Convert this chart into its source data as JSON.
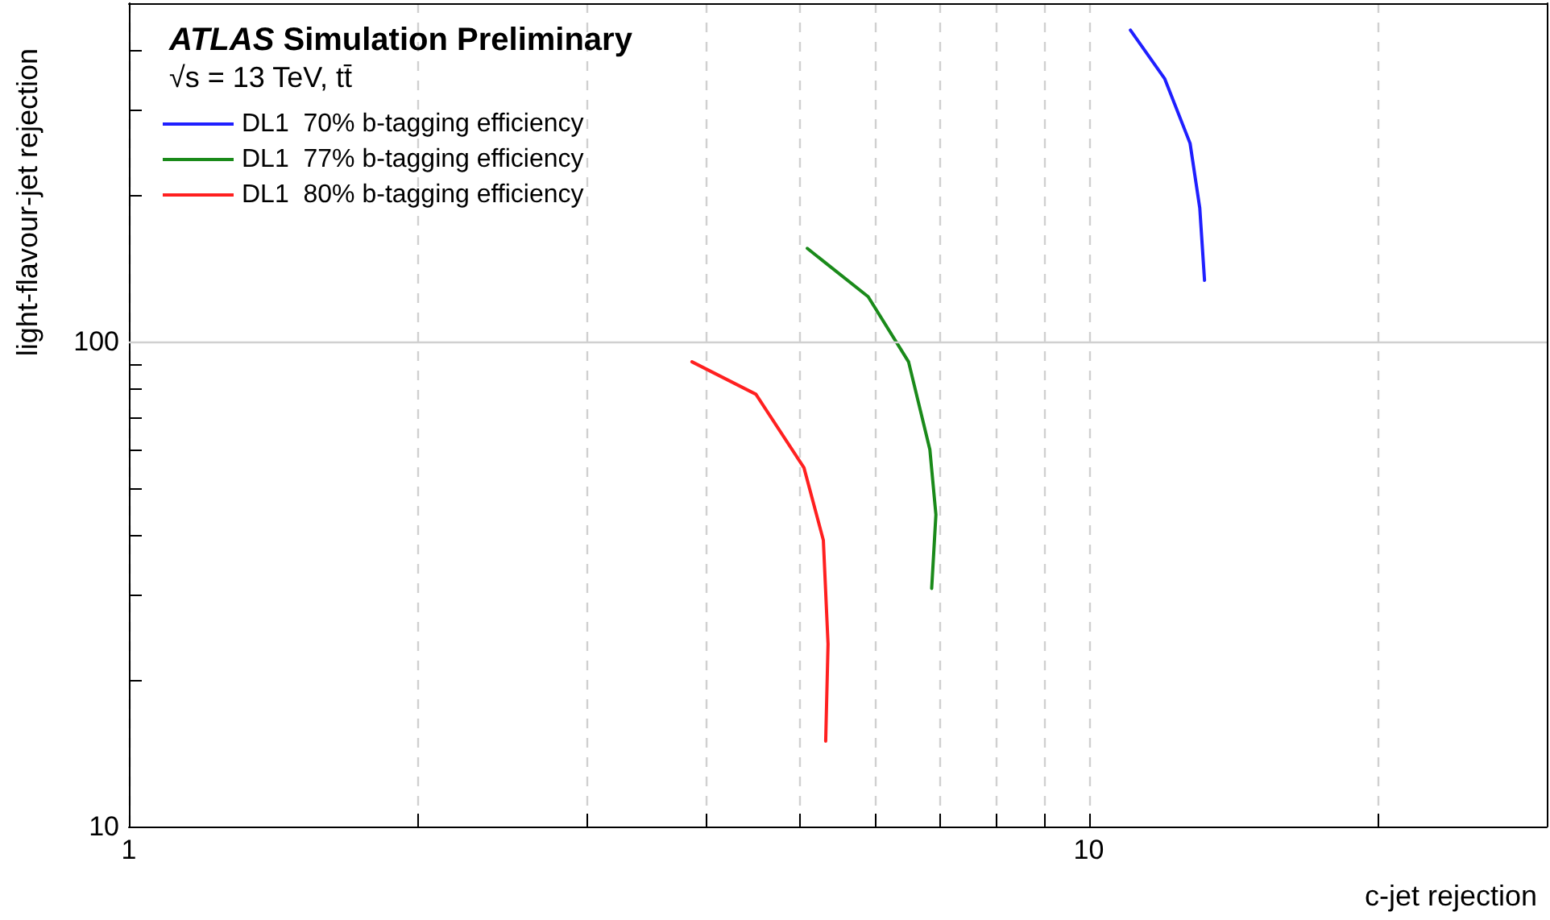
{
  "chart_data": {
    "type": "line",
    "title": "ATLAS Simulation Preliminary",
    "subtitle": "√s = 13 TeV, tt̄",
    "xlabel": "c-jet rejection",
    "ylabel": "light-flavour-jet rejection",
    "log": "xy",
    "grid": "x",
    "ref_lines": [
      {
        "axis": "y",
        "value": 100,
        "color": "#d0d0d0"
      }
    ],
    "legend": "top left",
    "marker": "none",
    "line_style": "solid",
    "xlim": [
      1,
      30
    ],
    "ylim": [
      10,
      500
    ],
    "xticks": [
      1,
      {
        "value": 2,
        "label": null
      },
      {
        "value": 3,
        "label": null
      },
      {
        "value": 4,
        "label": null
      },
      {
        "value": 5,
        "label": null
      },
      {
        "value": 6,
        "label": null
      },
      {
        "value": 7,
        "label": null
      },
      {
        "value": 8,
        "label": null
      },
      {
        "value": 9,
        "label": null
      },
      10,
      {
        "value": 20,
        "label": null
      }
    ],
    "yticks": [
      10,
      {
        "value": 20,
        "label": null
      },
      {
        "value": 30,
        "label": null
      },
      {
        "value": 40,
        "label": null
      },
      {
        "value": 50,
        "label": null
      },
      {
        "value": 60,
        "label": null
      },
      {
        "value": 70,
        "label": null
      },
      {
        "value": 80,
        "label": null
      },
      {
        "value": 90,
        "label": null
      },
      100,
      {
        "value": 200,
        "label": null
      },
      {
        "value": 300,
        "label": null
      },
      {
        "value": 400,
        "label": null
      }
    ],
    "series": [
      {
        "name": "DL1  70% b-tagging efficiency",
        "color": "#1f1fff",
        "x": [
          11.05,
          12.0,
          12.75,
          13.05,
          13.2
        ],
        "values": [
          440,
          349,
          257,
          189,
          134
        ]
      },
      {
        "name": "DL1  77% b-tagging efficiency",
        "color": "#1a8a1a",
        "x": [
          5.09,
          5.89,
          6.49,
          6.83,
          6.93,
          6.86
        ],
        "values": [
          156,
          124,
          91,
          60,
          44,
          31
        ]
      },
      {
        "name": "DL1  80% b-tagging efficiency",
        "color": "#ff2020",
        "x": [
          3.86,
          4.5,
          5.05,
          5.29,
          5.35,
          5.32
        ],
        "values": [
          91,
          78,
          55,
          39,
          23.8,
          15
        ]
      }
    ]
  }
}
